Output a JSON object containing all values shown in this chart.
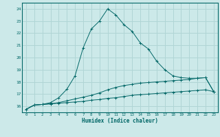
{
  "xlabel": "Humidex (Indice chaleur)",
  "bg_color": "#cce9e9",
  "grid_color": "#b0d5d5",
  "line_color": "#006666",
  "xlim": [
    -0.5,
    23.5
  ],
  "ylim": [
    15.5,
    24.5
  ],
  "xticks": [
    0,
    1,
    2,
    3,
    4,
    5,
    6,
    7,
    8,
    9,
    10,
    11,
    12,
    13,
    14,
    15,
    16,
    17,
    18,
    19,
    20,
    21,
    22,
    23
  ],
  "yticks": [
    16,
    17,
    18,
    19,
    20,
    21,
    22,
    23,
    24
  ],
  "series1_x": [
    0,
    1,
    2,
    3,
    4,
    5,
    6,
    7,
    8,
    9,
    10,
    11,
    12,
    13,
    14,
    15,
    16,
    17,
    18,
    19,
    20,
    21,
    22,
    23
  ],
  "series1_y": [
    15.75,
    16.1,
    16.15,
    16.2,
    16.25,
    16.3,
    16.35,
    16.4,
    16.5,
    16.55,
    16.65,
    16.7,
    16.8,
    16.9,
    16.95,
    17.0,
    17.05,
    17.1,
    17.15,
    17.2,
    17.25,
    17.3,
    17.35,
    17.2
  ],
  "series2_x": [
    0,
    1,
    2,
    3,
    4,
    5,
    6,
    7,
    8,
    9,
    10,
    11,
    12,
    13,
    14,
    15,
    16,
    17,
    18,
    19,
    20,
    21,
    22,
    23
  ],
  "series2_y": [
    15.75,
    16.1,
    16.15,
    16.2,
    16.3,
    16.45,
    16.6,
    16.75,
    16.9,
    17.1,
    17.35,
    17.55,
    17.7,
    17.8,
    17.9,
    17.95,
    18.0,
    18.05,
    18.1,
    18.15,
    18.2,
    18.3,
    18.35,
    17.2
  ],
  "series3_x": [
    0,
    1,
    2,
    3,
    4,
    5,
    6,
    7,
    8,
    9,
    10,
    11,
    12,
    13,
    14,
    15,
    16,
    17,
    18,
    19,
    20,
    21,
    22,
    23
  ],
  "series3_y": [
    15.75,
    16.1,
    16.15,
    16.3,
    16.7,
    17.4,
    18.5,
    20.8,
    22.35,
    23.0,
    24.0,
    23.5,
    22.7,
    22.15,
    21.2,
    20.7,
    19.7,
    19.0,
    18.5,
    18.35,
    18.3,
    18.3,
    18.35,
    17.2
  ]
}
